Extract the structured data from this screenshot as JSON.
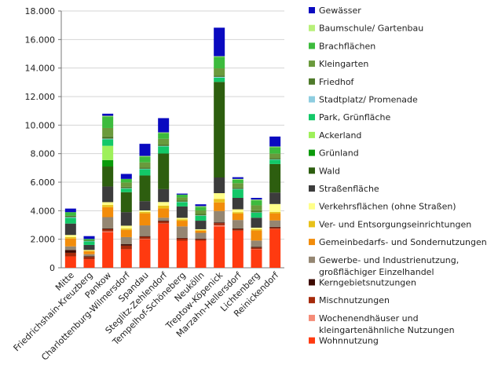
{
  "chart_data": {
    "type": "bar",
    "stacked": true,
    "title": "",
    "xlabel": "",
    "ylabel": "",
    "ylim": [
      0,
      18000
    ],
    "yticks": [
      0,
      2000,
      4000,
      6000,
      8000,
      10000,
      12000,
      14000,
      16000,
      18000
    ],
    "ytick_labels": [
      "0",
      "2.000",
      "4.000",
      "6.000",
      "8.000",
      "10.000",
      "12.000",
      "14.000",
      "16.000",
      "18.000"
    ],
    "grid": true,
    "legend_position": "right",
    "categories": [
      "Mitte",
      "Friedrichshain-Kreuzberg",
      "Pankow",
      "Charlottenburg-Wilmersdorf",
      "Spandau",
      "Steglitz-Zehlendorf",
      "Tempelhof-Schöneberg",
      "Neukölln",
      "Treptow-Köpenick",
      "Marzahn-Hellersdorf",
      "Lichtenberg",
      "Reinickendorf"
    ],
    "series": [
      {
        "name": "Wohnnutzung",
        "color": "#ff3a10",
        "values": [
          800,
          600,
          2500,
          1300,
          2000,
          3100,
          1900,
          1900,
          2900,
          2600,
          1300,
          2700
        ]
      },
      {
        "name": "Wochenendhäuser und kleingartenähnliche Nutzungen",
        "color": "#f58c78",
        "values": [
          0,
          0,
          50,
          0,
          20,
          10,
          0,
          0,
          80,
          0,
          10,
          20
        ]
      },
      {
        "name": "Mischnutzungen",
        "color": "#a52a0a",
        "values": [
          250,
          150,
          150,
          250,
          150,
          150,
          150,
          100,
          150,
          100,
          100,
          100
        ]
      },
      {
        "name": "Kerngebietsnutzungen",
        "color": "#3d0a00",
        "values": [
          200,
          50,
          50,
          100,
          50,
          50,
          50,
          50,
          50,
          50,
          50,
          50
        ]
      },
      {
        "name": "Gewerbe- und Industrienutzung, großflächiger Einzelhandel",
        "color": "#948672",
        "values": [
          250,
          150,
          800,
          500,
          750,
          200,
          800,
          400,
          800,
          600,
          450,
          450
        ]
      },
      {
        "name": "Gemeinbedarfs- und Sondernutzungen",
        "color": "#f28c0a",
        "values": [
          550,
          200,
          700,
          500,
          850,
          650,
          400,
          150,
          600,
          450,
          700,
          500
        ]
      },
      {
        "name": "Ver- und Entsorgungseinrichtungen",
        "color": "#e8c11a",
        "values": [
          100,
          50,
          150,
          100,
          100,
          200,
          100,
          50,
          250,
          100,
          100,
          100
        ]
      },
      {
        "name": "Verkehrsflächen (ohne Straßen)",
        "color": "#ffff8a",
        "values": [
          150,
          50,
          200,
          200,
          100,
          250,
          100,
          50,
          400,
          200,
          100,
          550
        ]
      },
      {
        "name": "Straßenfläche",
        "color": "#3c3c3c",
        "values": [
          800,
          350,
          1100,
          950,
          650,
          900,
          800,
          600,
          1100,
          800,
          700,
          800
        ]
      },
      {
        "name": "Wald",
        "color": "#2d5e0f",
        "values": [
          0,
          0,
          1400,
          1400,
          1800,
          2500,
          0,
          0,
          6700,
          0,
          0,
          2000
        ]
      },
      {
        "name": "Grünland",
        "color": "#0a9a0a",
        "values": [
          0,
          0,
          450,
          0,
          0,
          0,
          0,
          0,
          0,
          0,
          0,
          0
        ]
      },
      {
        "name": "Ackerland",
        "color": "#9ef05a",
        "values": [
          0,
          0,
          1000,
          0,
          0,
          0,
          0,
          0,
          0,
          0,
          0,
          0
        ]
      },
      {
        "name": "Park, Grünfläche",
        "color": "#13c868",
        "values": [
          400,
          250,
          450,
          250,
          450,
          500,
          300,
          350,
          300,
          600,
          350,
          300
        ]
      },
      {
        "name": "Stadtplatz/ Promenade",
        "color": "#8ecde0",
        "values": [
          50,
          20,
          50,
          30,
          20,
          30,
          30,
          20,
          50,
          30,
          20,
          30
        ]
      },
      {
        "name": "Friedhof",
        "color": "#4e7a2a",
        "values": [
          100,
          50,
          150,
          100,
          100,
          100,
          100,
          100,
          100,
          100,
          150,
          100
        ]
      },
      {
        "name": "Kleingarten",
        "color": "#6a9a3c",
        "values": [
          0,
          0,
          600,
          300,
          350,
          400,
          200,
          250,
          500,
          300,
          350,
          300
        ]
      },
      {
        "name": "Brachflächen",
        "color": "#3dbb3d",
        "values": [
          250,
          100,
          800,
          250,
          400,
          400,
          200,
          250,
          800,
          250,
          350,
          450
        ]
      },
      {
        "name": "Baumschule/ Gartenbau",
        "color": "#b8f07a",
        "values": [
          0,
          0,
          50,
          0,
          50,
          50,
          0,
          50,
          50,
          50,
          50,
          50
        ]
      },
      {
        "name": "Gewässer",
        "color": "#0a0ac0",
        "values": [
          250,
          200,
          150,
          350,
          850,
          1000,
          70,
          130,
          2000,
          120,
          120,
          700
        ]
      }
    ]
  }
}
